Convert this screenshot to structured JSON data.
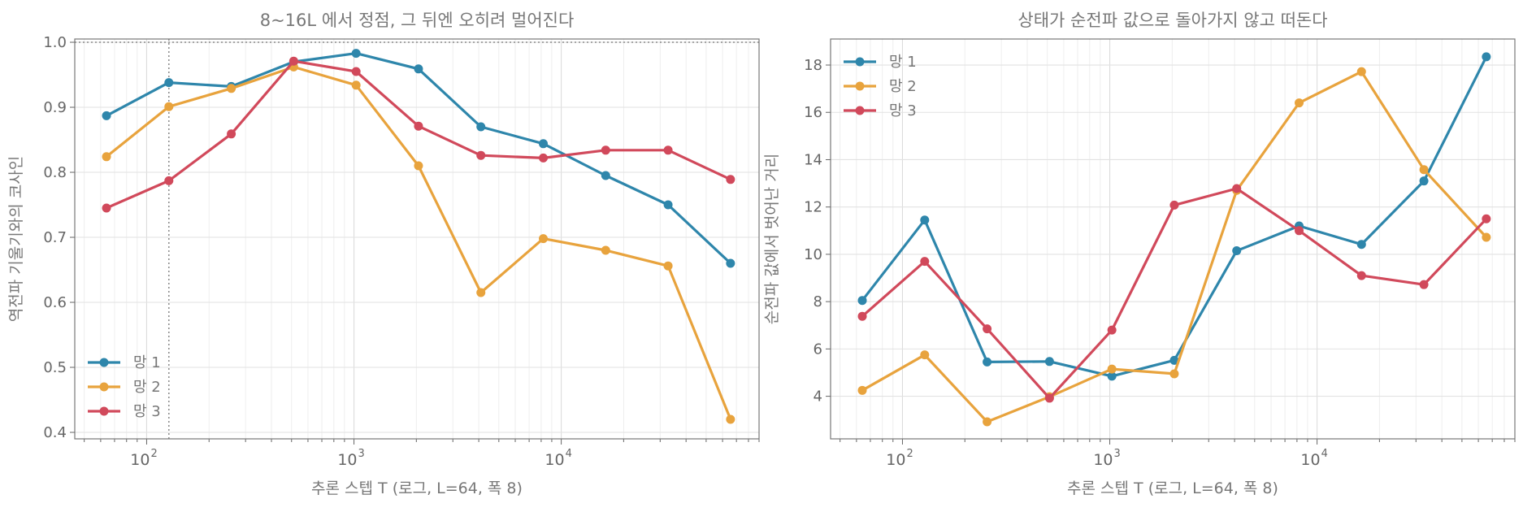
{
  "chart_data": [
    {
      "type": "line",
      "title": "8~16L 에서 정점, 그 뒤엔 오히려 멀어진다",
      "xlabel": "추론 스텝 T (로그, L=64, 폭 8)",
      "ylabel": "역전파 기울기와의 코사인",
      "x_scale": "log",
      "xlim": [
        45,
        90000
      ],
      "ylim": [
        0.39,
        1.005
      ],
      "grid": true,
      "legend_position": "lower-left",
      "x": [
        64,
        128,
        256,
        512,
        1024,
        2048,
        4096,
        8192,
        16384,
        32768,
        65536
      ],
      "x_ticks": [
        {
          "value": 100,
          "base": "10",
          "exp": "2"
        },
        {
          "value": 1000,
          "base": "10",
          "exp": "3"
        },
        {
          "value": 10000,
          "base": "10",
          "exp": "4"
        }
      ],
      "y_ticks": [
        {
          "value": 0.4,
          "label": "0.4"
        },
        {
          "value": 0.5,
          "label": "0.5"
        },
        {
          "value": 0.6,
          "label": "0.6"
        },
        {
          "value": 0.7,
          "label": "0.7"
        },
        {
          "value": 0.8,
          "label": "0.8"
        },
        {
          "value": 0.9,
          "label": "0.9"
        },
        {
          "value": 1.0,
          "label": "1.0"
        }
      ],
      "reference_lines": {
        "hline_y": 1.0,
        "vline_x": 128
      },
      "series": [
        {
          "name": "망 1",
          "color": "#2e86ab",
          "values": [
            0.887,
            0.938,
            0.932,
            0.97,
            0.983,
            0.959,
            0.87,
            0.844,
            0.795,
            0.75,
            0.66
          ]
        },
        {
          "name": "망 2",
          "color": "#e8a33d",
          "values": [
            0.824,
            0.901,
            0.929,
            0.962,
            0.934,
            0.81,
            0.615,
            0.698,
            0.68,
            0.656,
            0.42
          ]
        },
        {
          "name": "망 3",
          "color": "#d1495b",
          "values": [
            0.745,
            0.787,
            0.859,
            0.971,
            0.955,
            0.871,
            0.826,
            0.822,
            0.834,
            0.834,
            0.789
          ]
        }
      ]
    },
    {
      "type": "line",
      "title": "상태가 순전파 값으로 돌아가지 않고 떠돈다",
      "xlabel": "추론 스텝 T (로그, L=64, 폭 8)",
      "ylabel": "순전파 값에서 벗어난 거리",
      "x_scale": "log",
      "xlim": [
        45,
        90000
      ],
      "ylim": [
        2.2,
        19.1
      ],
      "grid": true,
      "legend_position": "upper-left",
      "x": [
        64,
        128,
        256,
        512,
        1024,
        2048,
        4096,
        8192,
        16384,
        32768,
        65536
      ],
      "x_ticks": [
        {
          "value": 100,
          "base": "10",
          "exp": "2"
        },
        {
          "value": 1000,
          "base": "10",
          "exp": "3"
        },
        {
          "value": 10000,
          "base": "10",
          "exp": "4"
        }
      ],
      "y_ticks": [
        {
          "value": 4,
          "label": "4"
        },
        {
          "value": 6,
          "label": "6"
        },
        {
          "value": 8,
          "label": "8"
        },
        {
          "value": 10,
          "label": "10"
        },
        {
          "value": 12,
          "label": "12"
        },
        {
          "value": 14,
          "label": "14"
        },
        {
          "value": 16,
          "label": "16"
        },
        {
          "value": 18,
          "label": "18"
        }
      ],
      "series": [
        {
          "name": "망 1",
          "color": "#2e86ab",
          "values": [
            8.05,
            11.45,
            5.45,
            5.47,
            4.85,
            5.52,
            10.15,
            11.2,
            10.42,
            13.1,
            18.35
          ]
        },
        {
          "name": "망 2",
          "color": "#e8a33d",
          "values": [
            4.25,
            5.75,
            2.92,
            3.98,
            5.15,
            4.95,
            12.7,
            16.4,
            17.72,
            13.58,
            10.72
          ]
        },
        {
          "name": "망 3",
          "color": "#d1495b",
          "values": [
            7.38,
            9.7,
            6.85,
            3.92,
            6.8,
            12.08,
            12.78,
            11.0,
            9.1,
            8.72,
            11.5
          ]
        }
      ]
    }
  ]
}
